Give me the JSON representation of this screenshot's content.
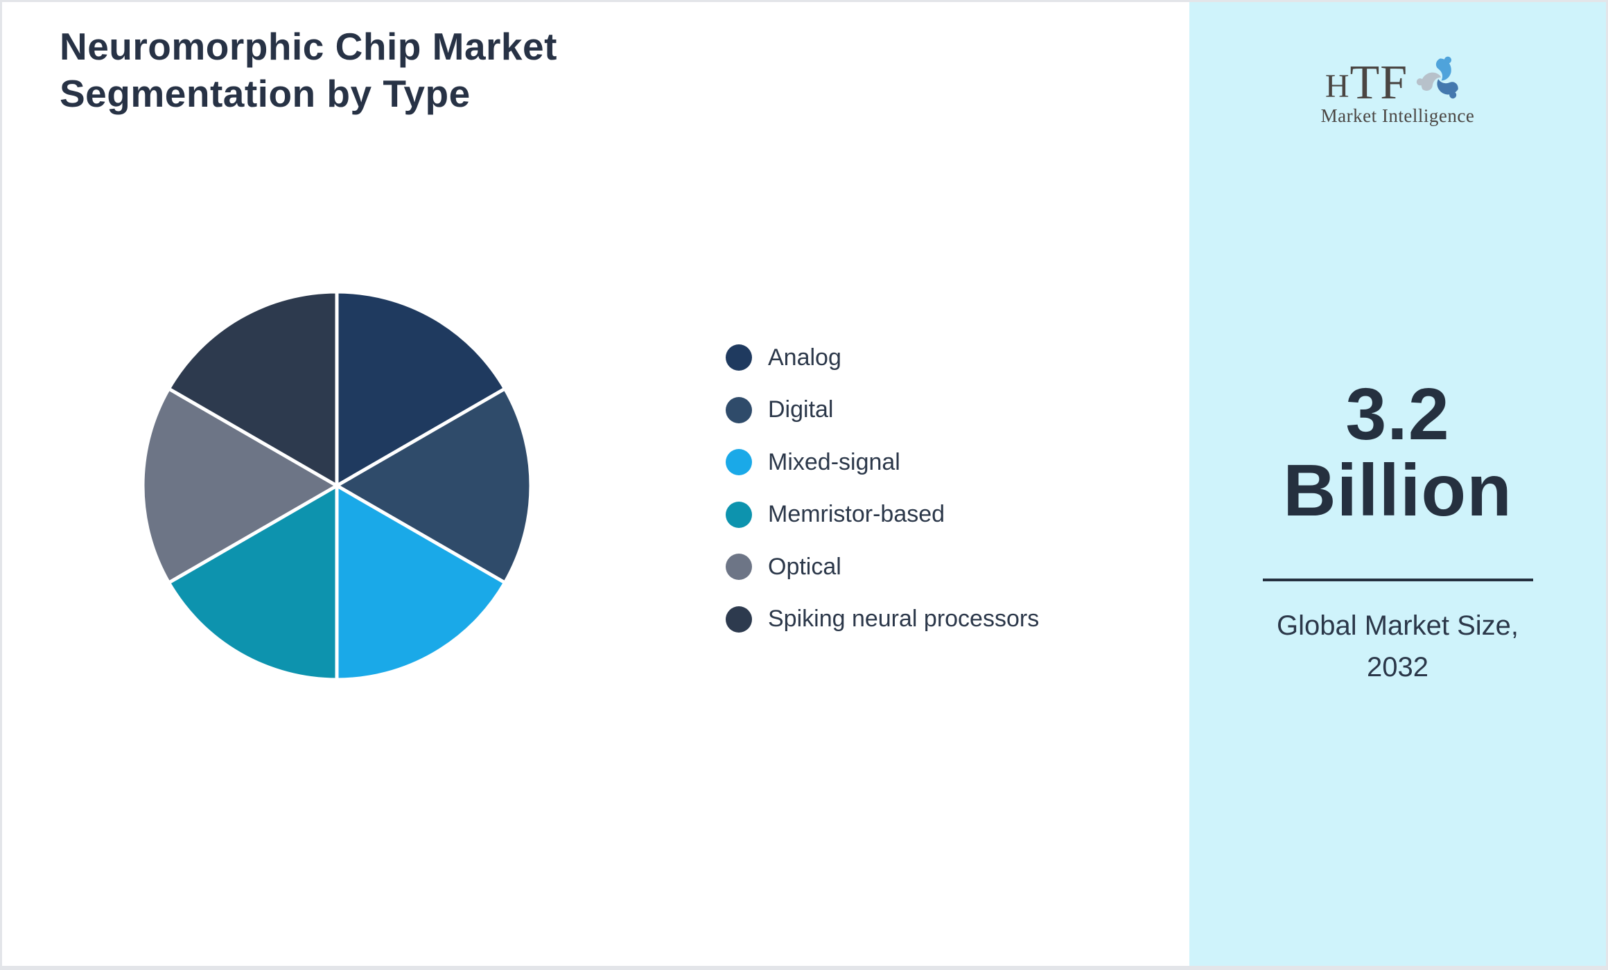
{
  "header": {
    "title_line1": "Neuromorphic Chip Market",
    "title_line2": "Segmentation by Type"
  },
  "chart_data": {
    "type": "pie",
    "title": "Neuromorphic Chip Market Segmentation by Type",
    "legend_position": "right",
    "start_angle_deg": 0,
    "direction": "clockwise",
    "slice_divider_color": "#ffffff",
    "segments": [
      {
        "label": "Analog",
        "value": 16.67,
        "color": "#1f3a5f"
      },
      {
        "label": "Digital",
        "value": 16.67,
        "color": "#2f4b6a"
      },
      {
        "label": "Mixed-signal",
        "value": 16.67,
        "color": "#1aa9e8"
      },
      {
        "label": "Memristor-based",
        "value": 16.67,
        "color": "#0d93ae"
      },
      {
        "label": "Optical",
        "value": 16.67,
        "color": "#6d7586"
      },
      {
        "label": "Spiking neural processors",
        "value": 16.67,
        "color": "#2d3a4e"
      }
    ]
  },
  "sidebar": {
    "background_color": "#cff3fb",
    "logo": {
      "brand_h": "H",
      "brand_tf": "TF",
      "tagline": "Market Intelligence"
    },
    "stat": {
      "value_line1": "3.2",
      "value_line2": "Billion",
      "caption_line1": "Global Market Size,",
      "caption_line2": "2032"
    }
  }
}
